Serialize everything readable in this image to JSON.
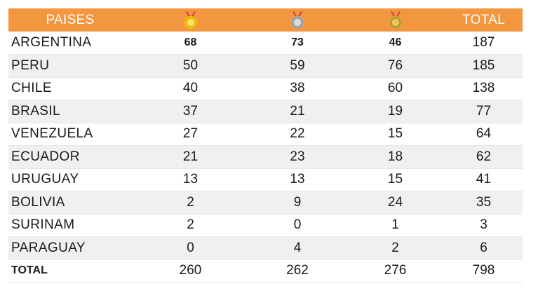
{
  "table": {
    "headers": {
      "country": "PAISES",
      "gold_icon": "gold-medal-icon",
      "silver_icon": "silver-medal-icon",
      "bronze_icon": "bronze-medal-icon",
      "total": "TOTAL"
    },
    "rows": [
      {
        "country": "ARGENTINA",
        "gold": "68",
        "silver": "73",
        "bronze": "46",
        "total": "187"
      },
      {
        "country": "PERU",
        "gold": "50",
        "silver": "59",
        "bronze": "76",
        "total": "185"
      },
      {
        "country": "CHILE",
        "gold": "40",
        "silver": "38",
        "bronze": "60",
        "total": "138"
      },
      {
        "country": "BRASIL",
        "gold": "37",
        "silver": "21",
        "bronze": "19",
        "total": "77"
      },
      {
        "country": "VENEZUELA",
        "gold": "27",
        "silver": "22",
        "bronze": "15",
        "total": "64"
      },
      {
        "country": "ECUADOR",
        "gold": "21",
        "silver": "23",
        "bronze": "18",
        "total": "62"
      },
      {
        "country": "URUGUAY",
        "gold": "13",
        "silver": "13",
        "bronze": "15",
        "total": "41"
      },
      {
        "country": "BOLIVIA",
        "gold": "2",
        "silver": "9",
        "bronze": "24",
        "total": "35"
      },
      {
        "country": "SURINAM",
        "gold": "2",
        "silver": "0",
        "bronze": "1",
        "total": "3"
      },
      {
        "country": "PARAGUAY",
        "gold": "0",
        "silver": "4",
        "bronze": "2",
        "total": "6"
      }
    ],
    "totals": {
      "label": "TOTAL",
      "gold": "260",
      "silver": "262",
      "bronze": "276",
      "total": "798"
    }
  },
  "colors": {
    "header_bg": "#f39640",
    "row_stripe": "#f0f0f0",
    "gold_medal": "#f2c500",
    "silver_medal": "#a8a8a8",
    "bronze_medal": "#c8a23a",
    "ribbon": "#d8453a"
  }
}
